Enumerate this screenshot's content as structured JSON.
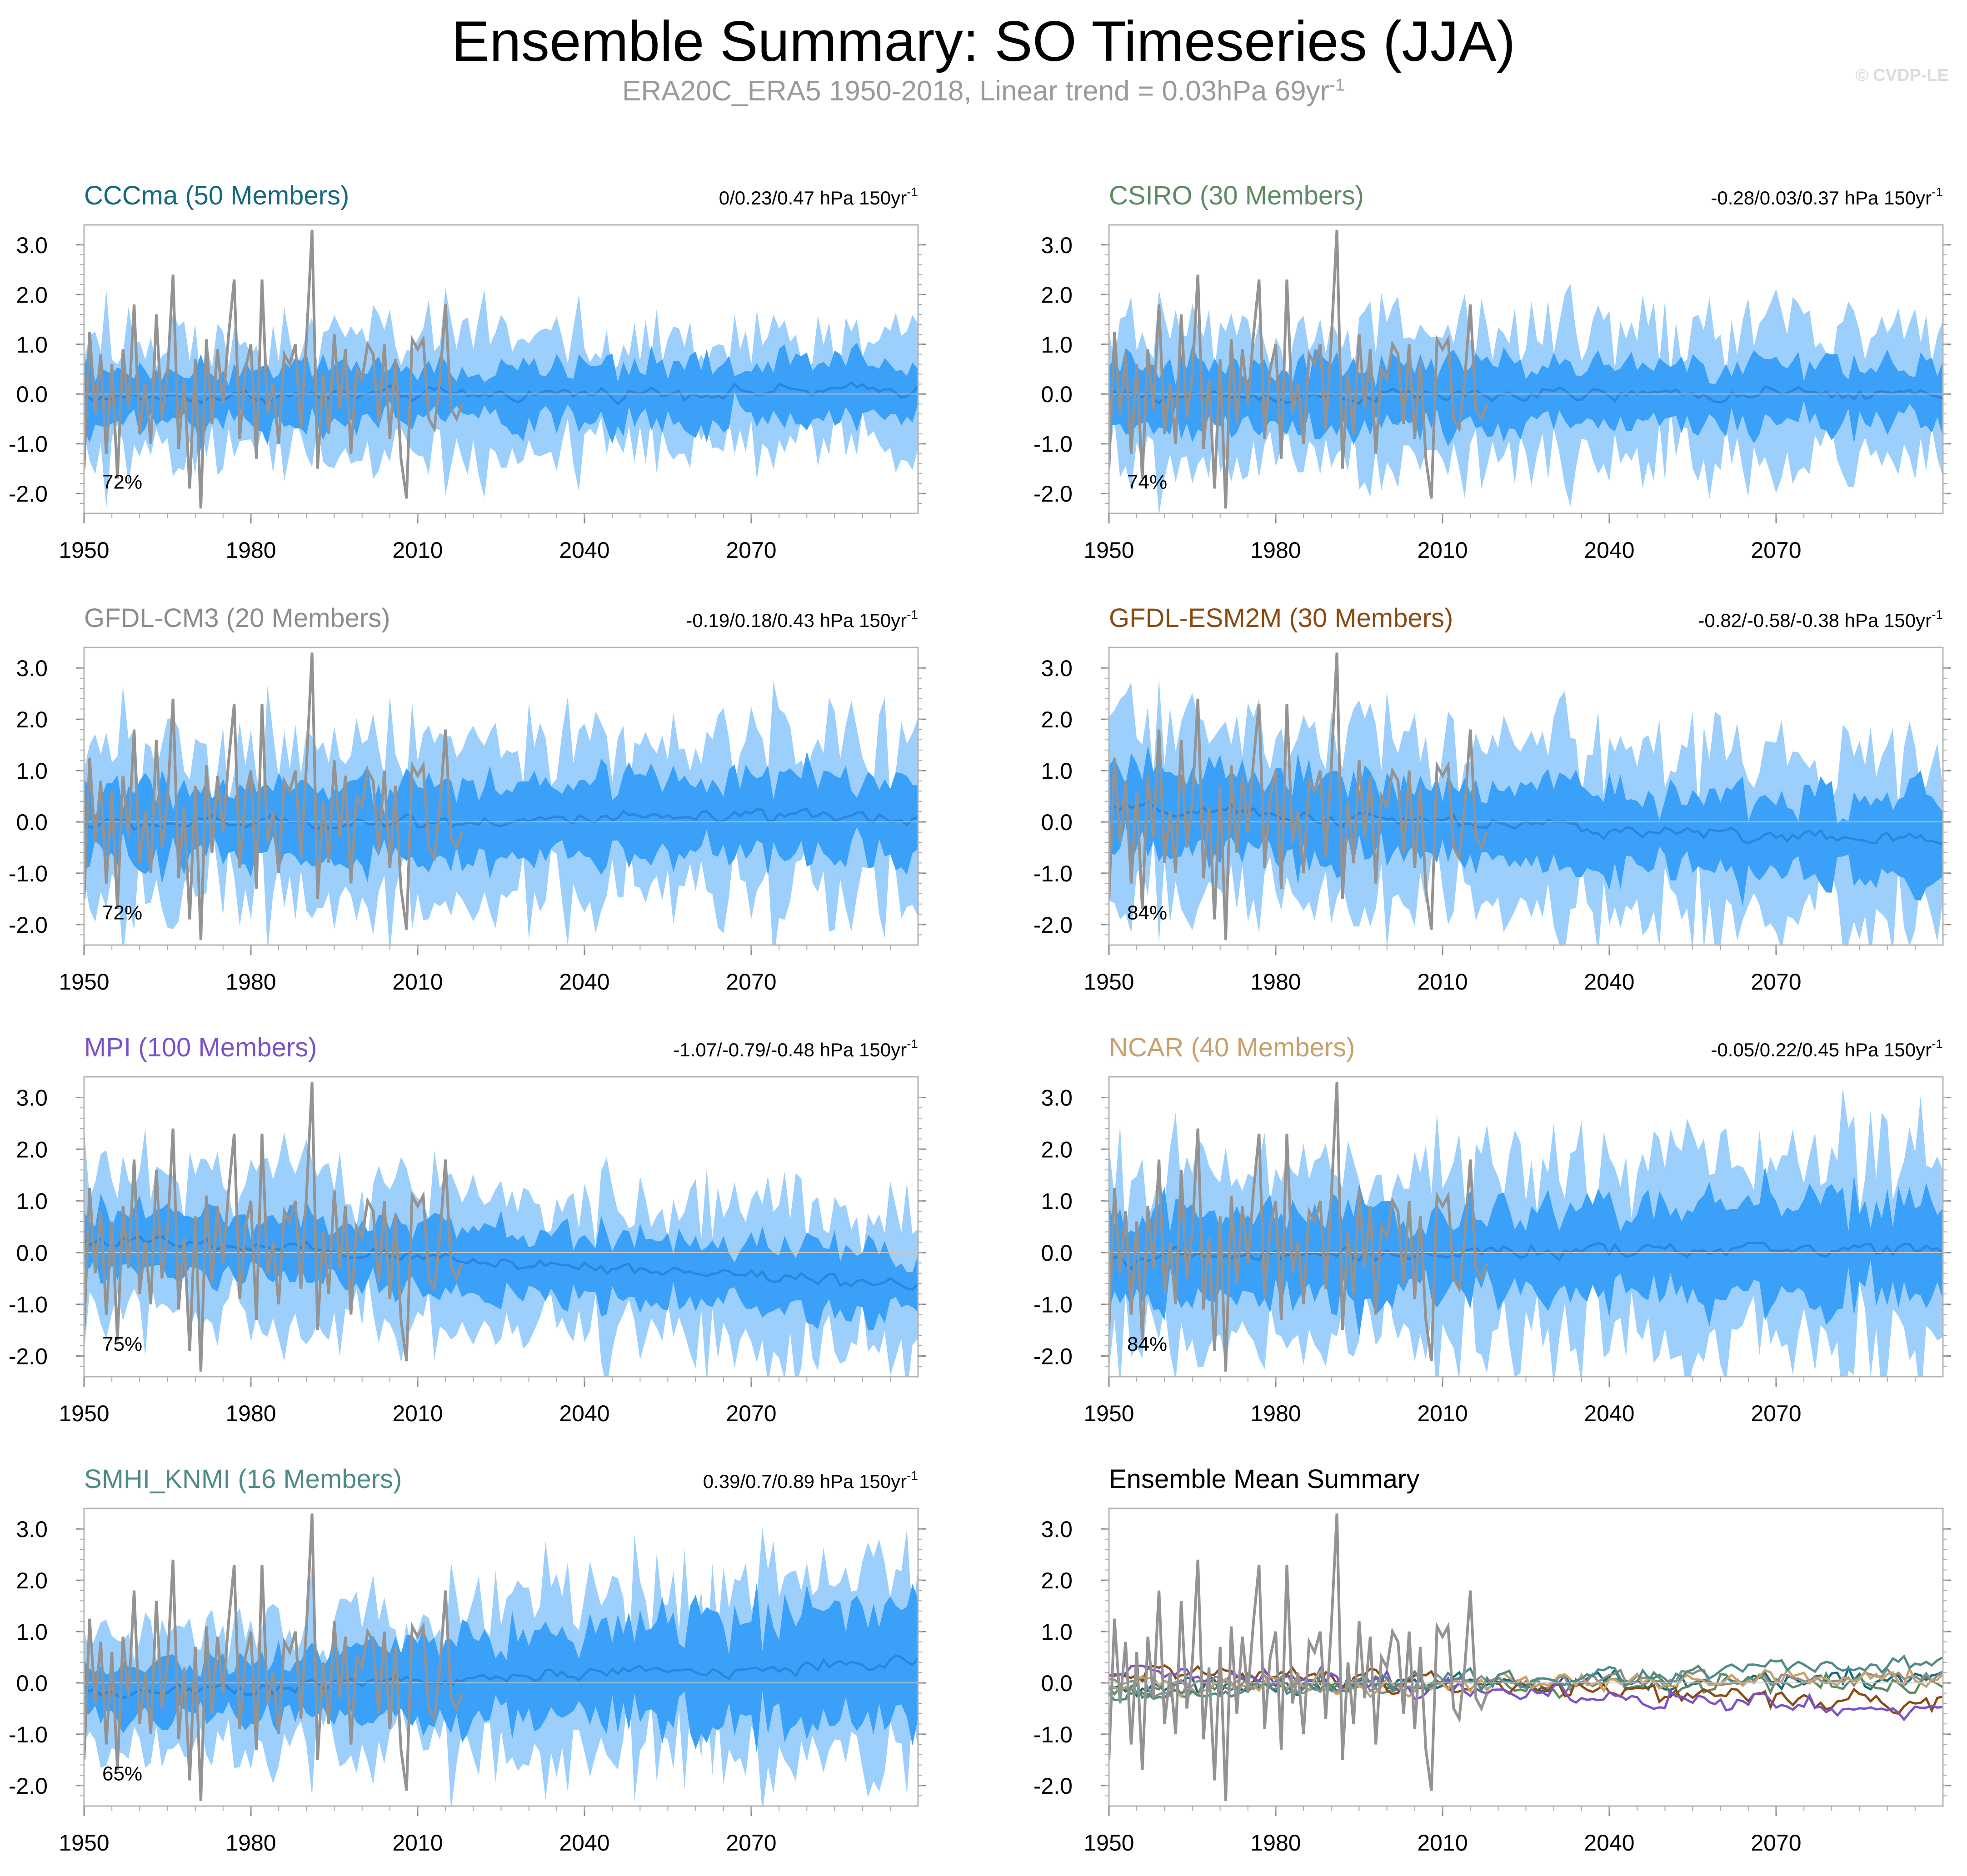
{
  "title": "Ensemble Summary: SO Timeseries (JJA)",
  "subtitle": {
    "text": "ERA20C_ERA5 1950-2018, Linear trend = 0.03hPa 69yr",
    "superscript": "-1"
  },
  "credit": "© CVDP-LE",
  "colors": {
    "outer_band": "#9ccffb",
    "inner_band": "#3aa0f8",
    "ensemble_mean": "#2b86dc",
    "observations": "#939393",
    "frame": "#b4b4b4"
  },
  "chart_data": [
    {
      "type": "line",
      "panel": "CCCma",
      "title": "CCCma (50 Members)",
      "title_color": "#17697f",
      "trend": "0/0.23/0.47 hPa 150yr",
      "trend_sup": "-1",
      "pct": "72%",
      "xlim": [
        1950,
        2100
      ],
      "ylim": [
        -2.4,
        3.4
      ],
      "xticks": [
        "1950",
        "1980",
        "2010",
        "2040",
        "2070"
      ],
      "yticks": [
        "3.0",
        "2.0",
        "1.0",
        "0.0",
        "-1.0",
        "-2.0"
      ],
      "mean_trend": [
        -0.08,
        0.08
      ],
      "outer_width": [
        1.25,
        1.1
      ],
      "inner_width": [
        0.55,
        0.55
      ]
    },
    {
      "type": "line",
      "panel": "CSIRO",
      "title": "CSIRO (30 Members)",
      "title_color": "#5c8b63",
      "trend": "-0.28/0.03/0.37 hPa 150yr",
      "trend_sup": "-1",
      "pct": "74%",
      "xlim": [
        1950,
        2100
      ],
      "ylim": [
        -2.4,
        3.4
      ],
      "xticks": [
        "1950",
        "1980",
        "2010",
        "2040",
        "2070"
      ],
      "yticks": [
        "3.0",
        "2.0",
        "1.0",
        "0.0",
        "-1.0",
        "-2.0"
      ],
      "mean_trend": [
        -0.05,
        0.0
      ],
      "outer_width": [
        1.3,
        1.3
      ],
      "inner_width": [
        0.6,
        0.6
      ]
    },
    {
      "type": "line",
      "panel": "GFDL-CM3",
      "title": "GFDL-CM3 (20 Members)",
      "title_color": "#8c8c8c",
      "trend": "-0.19/0.18/0.43 hPa 150yr",
      "trend_sup": "-1",
      "pct": "72%",
      "xlim": [
        1950,
        2100
      ],
      "ylim": [
        -2.4,
        3.4
      ],
      "xticks": [
        "1950",
        "1980",
        "2010",
        "2040",
        "2070"
      ],
      "yticks": [
        "3.0",
        "2.0",
        "1.0",
        "0.0",
        "-1.0",
        "-2.0"
      ],
      "mean_trend": [
        -0.05,
        0.1
      ],
      "outer_width": [
        1.4,
        1.5
      ],
      "inner_width": [
        0.65,
        0.8
      ]
    },
    {
      "type": "line",
      "panel": "GFDL-ESM2M",
      "title": "GFDL-ESM2M (30 Members)",
      "title_color": "#8a4a12",
      "trend": "-0.82/-0.58/-0.38 hPa 150yr",
      "trend_sup": "-1",
      "pct": "84%",
      "xlim": [
        1950,
        2100
      ],
      "ylim": [
        -2.4,
        3.4
      ],
      "xticks": [
        "1950",
        "1980",
        "2010",
        "2040",
        "2070"
      ],
      "yticks": [
        "3.0",
        "2.0",
        "1.0",
        "0.0",
        "-1.0",
        "-2.0"
      ],
      "mean_trend": [
        0.25,
        -0.4
      ],
      "outer_width": [
        1.55,
        1.5
      ],
      "inner_width": [
        0.75,
        0.75
      ]
    },
    {
      "type": "line",
      "panel": "MPI",
      "title": "MPI (100 Members)",
      "title_color": "#7b52c7",
      "trend": "-1.07/-0.79/-0.48 hPa 150yr",
      "trend_sup": "-1",
      "pct": "75%",
      "xlim": [
        1950,
        2100
      ],
      "ylim": [
        -2.4,
        3.4
      ],
      "xticks": [
        "1950",
        "1980",
        "2010",
        "2040",
        "2070"
      ],
      "yticks": [
        "3.0",
        "2.0",
        "1.0",
        "0.0",
        "-1.0",
        "-2.0"
      ],
      "mean_trend": [
        0.25,
        -0.6
      ],
      "outer_width": [
        1.4,
        1.3
      ],
      "inner_width": [
        0.6,
        0.6
      ]
    },
    {
      "type": "line",
      "panel": "NCAR",
      "title": "NCAR (40 Members)",
      "title_color": "#c9a06c",
      "trend": "-0.05/0.22/0.45 hPa 150yr",
      "trend_sup": "-1",
      "pct": "84%",
      "xlim": [
        1950,
        2100
      ],
      "ylim": [
        -2.4,
        3.4
      ],
      "xticks": [
        "1950",
        "1980",
        "2010",
        "2040",
        "2070"
      ],
      "yticks": [
        "3.0",
        "2.0",
        "1.0",
        "0.0",
        "-1.0",
        "-2.0"
      ],
      "mean_trend": [
        -0.1,
        0.1
      ],
      "outer_width": [
        1.65,
        1.8
      ],
      "inner_width": [
        0.8,
        0.9
      ]
    },
    {
      "type": "line",
      "panel": "SMHI_KNMI",
      "title": "SMHI_KNMI (16 Members)",
      "title_color": "#4f8a88",
      "trend": "0.39/0.7/0.89 hPa 150yr",
      "trend_sup": "-1",
      "pct": "65%",
      "xlim": [
        1950,
        2100
      ],
      "ylim": [
        -2.4,
        3.4
      ],
      "xticks": [
        "1950",
        "1980",
        "2010",
        "2040",
        "2070"
      ],
      "yticks": [
        "3.0",
        "2.0",
        "1.0",
        "0.0",
        "-1.0",
        "-2.0"
      ],
      "mean_trend": [
        -0.2,
        0.4
      ],
      "outer_width": [
        1.0,
        1.8
      ],
      "inner_width": [
        0.5,
        1.1
      ]
    },
    {
      "type": "line",
      "panel": "Ensemble Mean Summary",
      "title": "Ensemble Mean Summary",
      "title_color": "#000000",
      "xlim": [
        1950,
        2100
      ],
      "ylim": [
        -2.4,
        3.4
      ],
      "xticks": [
        "1950",
        "1980",
        "2010",
        "2040",
        "2070"
      ],
      "yticks": [
        "3.0",
        "2.0",
        "1.0",
        "0.0",
        "-1.0",
        "-2.0"
      ],
      "series": [
        {
          "name": "CCCma",
          "color": "#17697f",
          "trend": [
            -0.08,
            0.08
          ]
        },
        {
          "name": "CSIRO",
          "color": "#5c8b63",
          "trend": [
            -0.05,
            0.0
          ]
        },
        {
          "name": "GFDL-CM3",
          "color": "#8c8c8c",
          "trend": [
            -0.05,
            0.1
          ]
        },
        {
          "name": "GFDL-ESM2M",
          "color": "#8a4a12",
          "trend": [
            0.25,
            -0.4
          ]
        },
        {
          "name": "MPI",
          "color": "#7b52c7",
          "trend": [
            0.25,
            -0.6
          ]
        },
        {
          "name": "NCAR",
          "color": "#c9a06c",
          "trend": [
            -0.1,
            0.1
          ]
        },
        {
          "name": "SMHI_KNMI",
          "color": "#4f8a88",
          "trend": [
            -0.2,
            0.4
          ]
        }
      ]
    }
  ],
  "observations": {
    "name": "ERA20C_ERA5",
    "years": [
      1950,
      2018
    ],
    "values": [
      -1.5,
      1.25,
      -0.4,
      0.8,
      -1.2,
      0.6,
      -1.7,
      0.9,
      -0.3,
      1.8,
      -0.8,
      0.2,
      -1.0,
      1.6,
      -0.5,
      0.4,
      2.4,
      -1.1,
      0.3,
      -1.9,
      0.7,
      -2.3,
      1.1,
      -0.6,
      0.9,
      -0.2,
      1.2,
      2.3,
      -0.9,
      0.5,
      1.0,
      -1.3,
      2.3,
      -0.4,
      0.2,
      -1.0,
      0.8,
      0.6,
      1.0,
      -0.7,
      1.1,
      3.3,
      -1.5,
      0.4,
      -0.8,
      1.2,
      -0.3,
      0.9,
      -1.2,
      0.5,
      0.3,
      1.0,
      0.8,
      -0.6,
      1.0,
      -0.9,
      0.7,
      -1.3,
      -2.1,
      1.1,
      0.9,
      1.1,
      -0.5,
      -0.7,
      0.3,
      1.8,
      -0.3,
      -0.5,
      -0.2
    ]
  }
}
